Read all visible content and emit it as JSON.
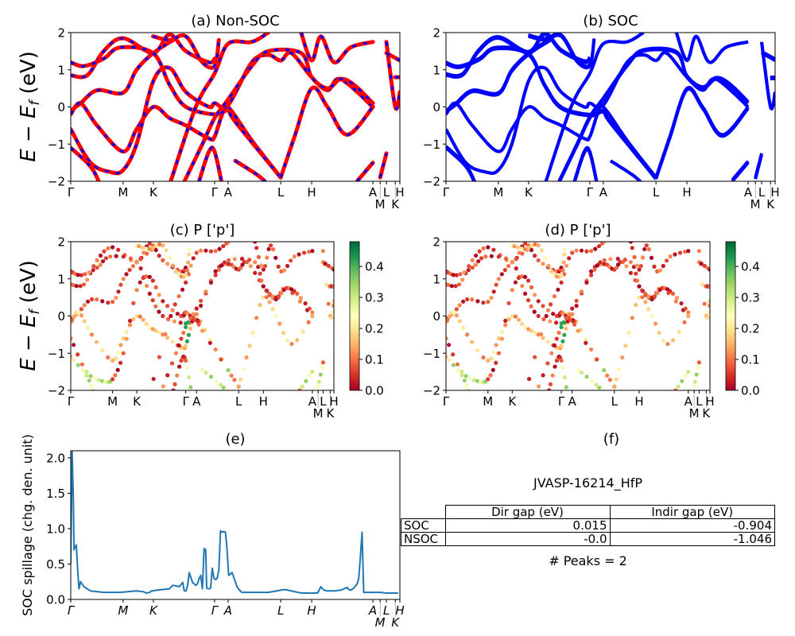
{
  "figure": {
    "material_id": "JVASP-16214_HfP",
    "peaks_label": "# Peaks = 2"
  },
  "kpath": {
    "labels": [
      "Γ",
      "M",
      "K",
      "Γ",
      "A",
      "L",
      "H",
      "A",
      "M",
      "L",
      "K",
      "H"
    ],
    "positions": [
      0,
      0.159,
      0.251,
      0.437,
      0.478,
      0.638,
      0.732,
      0.918,
      0.94,
      0.959,
      0.986,
      1.0
    ]
  },
  "chart_data": [
    {
      "id": "a",
      "type": "line",
      "title": "(a) Non-SOC",
      "ylabel": "E − E_f (eV)",
      "ylim": [
        -2,
        2
      ],
      "yticks": [
        -2,
        -1,
        0,
        1,
        2
      ],
      "series_style": "red solid with blue dashes overlay",
      "colors": {
        "line": "#ff0000",
        "dash": "#0000ff"
      }
    },
    {
      "id": "b",
      "type": "line",
      "title": "(b) SOC",
      "ylim": [
        -2,
        2
      ],
      "yticks": [
        -2,
        -1,
        0,
        1,
        2
      ],
      "colors": {
        "line": "#0000ff"
      }
    },
    {
      "id": "c",
      "type": "scatter",
      "title": "(c)  P ['p']",
      "ylabel": "E − E_f (eV)",
      "ylim": [
        -2,
        2
      ],
      "yticks": [
        -2,
        -1,
        0,
        1,
        2
      ],
      "colorbar": {
        "cmap": "RdYlGn",
        "range": [
          0.0,
          0.48
        ],
        "ticks": [
          "0.0",
          "0.1",
          "0.2",
          "0.3",
          "0.4"
        ]
      }
    },
    {
      "id": "d",
      "type": "scatter",
      "title": "(d) P ['p']",
      "ylim": [
        -2,
        2
      ],
      "yticks": [
        -2,
        -1,
        0,
        1,
        2
      ],
      "colorbar": {
        "cmap": "RdYlGn",
        "range": [
          0.0,
          0.48
        ],
        "ticks": [
          "0.0",
          "0.1",
          "0.2",
          "0.3",
          "0.4"
        ]
      }
    },
    {
      "id": "e",
      "type": "line",
      "title": "(e)",
      "ylabel": "SOC spillage (chg. den. unit)",
      "ylim": [
        0,
        2.1
      ],
      "yticks": [
        "0.0",
        "0.5",
        "1.0",
        "1.5",
        "2.0"
      ],
      "colors": {
        "line": "#1f77b4"
      },
      "x": [
        0,
        0.004,
        0.008,
        0.01,
        0.013,
        0.017,
        0.02,
        0.025,
        0.03,
        0.04,
        0.06,
        0.1,
        0.15,
        0.2,
        0.22,
        0.23,
        0.24,
        0.245,
        0.25,
        0.26,
        0.3,
        0.31,
        0.33,
        0.34,
        0.345,
        0.35,
        0.355,
        0.36,
        0.37,
        0.38,
        0.385,
        0.39,
        0.395,
        0.4,
        0.405,
        0.41,
        0.413,
        0.418,
        0.42,
        0.425,
        0.43,
        0.435,
        0.44,
        0.445,
        0.45,
        0.455,
        0.46,
        0.465,
        0.47,
        0.475,
        0.48,
        0.49,
        0.5,
        0.505,
        0.51,
        0.515,
        0.52,
        0.54,
        0.56,
        0.6,
        0.65,
        0.7,
        0.7,
        0.705,
        0.71,
        0.75,
        0.76,
        0.765,
        0.77,
        0.78,
        0.8,
        0.82,
        0.84,
        0.845,
        0.85,
        0.86,
        0.87,
        0.875,
        0.88,
        0.885,
        0.89,
        0.9,
        0.905,
        0.91,
        0.92,
        0.94,
        0.96,
        0.98,
        0.995
      ],
      "y": [
        0.5,
        2.1,
        1.4,
        0.7,
        0.74,
        0.77,
        0.5,
        0.15,
        0.25,
        0.18,
        0.12,
        0.1,
        0.1,
        0.12,
        0.11,
        0.09,
        0.1,
        0.12,
        0.12,
        0.13,
        0.15,
        0.2,
        0.18,
        0.24,
        0.12,
        0.12,
        0.2,
        0.38,
        0.24,
        0.2,
        0.22,
        0.3,
        0.34,
        0.15,
        0.72,
        0.7,
        0.16,
        0.15,
        0.15,
        0.16,
        0.44,
        0.3,
        0.28,
        0.3,
        0.42,
        0.97,
        0.95,
        0.96,
        0.95,
        0.7,
        0.34,
        0.38,
        0.25,
        0.18,
        0.15,
        0.12,
        0.1,
        0.1,
        0.1,
        0.1,
        0.14,
        0.09,
        0.09,
        0.09,
        0.09,
        0.09,
        0.18,
        0.15,
        0.13,
        0.12,
        0.12,
        0.13,
        0.17,
        0.14,
        0.13,
        0.16,
        0.22,
        0.3,
        0.6,
        0.95,
        0.1,
        0.1,
        0.1,
        0.1,
        0.1,
        0.1,
        0.09,
        0.09,
        0.09
      ]
    }
  ],
  "table": {
    "headers": [
      "",
      "Dir gap (eV)",
      "Indir gap (eV)"
    ],
    "rows": [
      {
        "label": "SOC",
        "dir": "0.015",
        "indir": "-0.904"
      },
      {
        "label": "NSOC",
        "dir": "-0.0",
        "indir": "-1.046"
      }
    ]
  },
  "panel_f_title": "(f)"
}
